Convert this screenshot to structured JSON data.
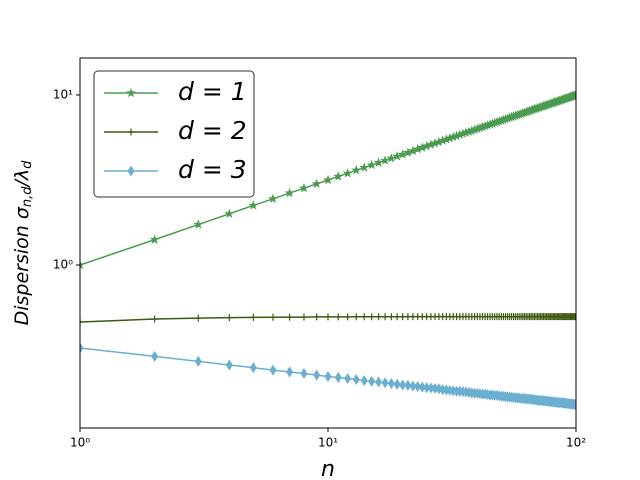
{
  "chart_data": {
    "type": "line",
    "x_label": "n",
    "y_label": [
      "Dispersion σ",
      "n,d",
      "/λ",
      "d"
    ],
    "log_x": true,
    "log_y": true,
    "grid": false,
    "legend": "upper left",
    "xlim": [
      1,
      100
    ],
    "ylim": [
      0.11,
      16.5
    ],
    "xticks": [
      {
        "value": 1,
        "label": "10⁰"
      },
      {
        "value": 10,
        "label": "10¹"
      },
      {
        "value": 100,
        "label": "10²"
      }
    ],
    "yticks": [
      {
        "value": 1,
        "label": "10⁰"
      },
      {
        "value": 10,
        "label": "10¹"
      }
    ],
    "x": [
      1,
      2,
      3,
      4,
      5,
      6,
      7,
      8,
      9,
      10,
      11,
      12,
      13,
      14,
      15,
      16,
      17,
      18,
      19,
      20,
      21,
      22,
      23,
      24,
      25,
      26,
      27,
      28,
      29,
      30,
      31,
      32,
      33,
      34,
      35,
      36,
      37,
      38,
      39,
      40,
      41,
      42,
      43,
      44,
      45,
      46,
      47,
      48,
      49,
      50,
      51,
      52,
      53,
      54,
      55,
      56,
      57,
      58,
      59,
      60,
      61,
      62,
      63,
      64,
      65,
      66,
      67,
      68,
      69,
      70,
      71,
      72,
      73,
      74,
      75,
      76,
      77,
      78,
      79,
      80,
      81,
      82,
      83,
      84,
      85,
      86,
      87,
      88,
      89,
      90,
      91,
      92,
      93,
      94,
      95,
      96,
      97,
      98,
      99,
      100
    ],
    "series": [
      {
        "name": "d = 1",
        "color": "#4a9a50",
        "marker": "*",
        "values": [
          1,
          1.41,
          1.73,
          2,
          2.24,
          2.45,
          2.65,
          2.83,
          3,
          3.16,
          3.32,
          3.46,
          3.61,
          3.74,
          3.87,
          4,
          4.12,
          4.24,
          4.36,
          4.47,
          4.58,
          4.69,
          4.8,
          4.9,
          5,
          5.1,
          5.2,
          5.29,
          5.39,
          5.48,
          5.57,
          5.66,
          5.74,
          5.83,
          5.92,
          6,
          6.08,
          6.16,
          6.24,
          6.32,
          6.4,
          6.48,
          6.56,
          6.63,
          6.71,
          6.78,
          6.86,
          6.93,
          7,
          7.07,
          7.14,
          7.21,
          7.28,
          7.35,
          7.42,
          7.48,
          7.55,
          7.62,
          7.68,
          7.75,
          7.81,
          7.87,
          7.94,
          8,
          8.06,
          8.12,
          8.19,
          8.25,
          8.31,
          8.37,
          8.43,
          8.49,
          8.54,
          8.6,
          8.66,
          8.72,
          8.77,
          8.83,
          8.89,
          8.94,
          9,
          9.06,
          9.11,
          9.17,
          9.22,
          9.27,
          9.33,
          9.38,
          9.43,
          9.49,
          9.54,
          9.59,
          9.64,
          9.7,
          9.75,
          9.8,
          9.85,
          9.9,
          9.95,
          10
        ]
      },
      {
        "name": "d = 2",
        "color": "#3d5a0f",
        "marker": "+",
        "values": [
          0.462,
          0.481,
          0.487,
          0.49,
          0.492,
          0.493,
          0.494,
          0.494,
          0.495,
          0.495,
          0.495,
          0.495,
          0.496,
          0.496,
          0.496,
          0.496,
          0.496,
          0.496,
          0.496,
          0.496,
          0.497,
          0.497,
          0.497,
          0.497,
          0.497,
          0.497,
          0.497,
          0.497,
          0.497,
          0.497,
          0.497,
          0.497,
          0.497,
          0.497,
          0.497,
          0.497,
          0.497,
          0.497,
          0.497,
          0.497,
          0.497,
          0.497,
          0.497,
          0.497,
          0.497,
          0.497,
          0.497,
          0.497,
          0.497,
          0.497,
          0.497,
          0.497,
          0.497,
          0.497,
          0.497,
          0.497,
          0.497,
          0.497,
          0.497,
          0.497,
          0.497,
          0.497,
          0.497,
          0.497,
          0.497,
          0.497,
          0.497,
          0.497,
          0.497,
          0.497,
          0.497,
          0.497,
          0.497,
          0.497,
          0.497,
          0.497,
          0.497,
          0.497,
          0.497,
          0.497,
          0.497,
          0.497,
          0.497,
          0.497,
          0.497,
          0.497,
          0.497,
          0.497,
          0.497,
          0.497,
          0.497,
          0.497,
          0.497,
          0.497,
          0.497,
          0.497,
          0.497,
          0.497,
          0.497,
          0.497
        ]
      },
      {
        "name": "d = 3",
        "color": "#6aaed0",
        "marker": "d",
        "values": [
          0.325,
          0.29,
          0.271,
          0.258,
          0.249,
          0.241,
          0.235,
          0.23,
          0.225,
          0.221,
          0.218,
          0.215,
          0.212,
          0.209,
          0.207,
          0.205,
          0.203,
          0.201,
          0.199,
          0.197,
          0.196,
          0.194,
          0.193,
          0.191,
          0.19,
          0.189,
          0.188,
          0.187,
          0.185,
          0.184,
          0.183,
          0.182,
          0.181,
          0.181,
          0.18,
          0.179,
          0.178,
          0.177,
          0.176,
          0.176,
          0.175,
          0.174,
          0.174,
          0.173,
          0.172,
          0.172,
          0.171,
          0.171,
          0.17,
          0.169,
          0.169,
          0.168,
          0.168,
          0.167,
          0.167,
          0.166,
          0.166,
          0.165,
          0.165,
          0.164,
          0.164,
          0.164,
          0.163,
          0.163,
          0.163,
          0.162,
          0.162,
          0.161,
          0.161,
          0.16,
          0.16,
          0.16,
          0.159,
          0.159,
          0.159,
          0.158,
          0.158,
          0.158,
          0.157,
          0.157,
          0.157,
          0.156,
          0.156,
          0.156,
          0.155,
          0.155,
          0.155,
          0.155,
          0.154,
          0.154,
          0.154,
          0.153,
          0.153,
          0.153,
          0.152,
          0.152,
          0.152,
          0.152,
          0.151,
          0.151
        ]
      }
    ]
  }
}
